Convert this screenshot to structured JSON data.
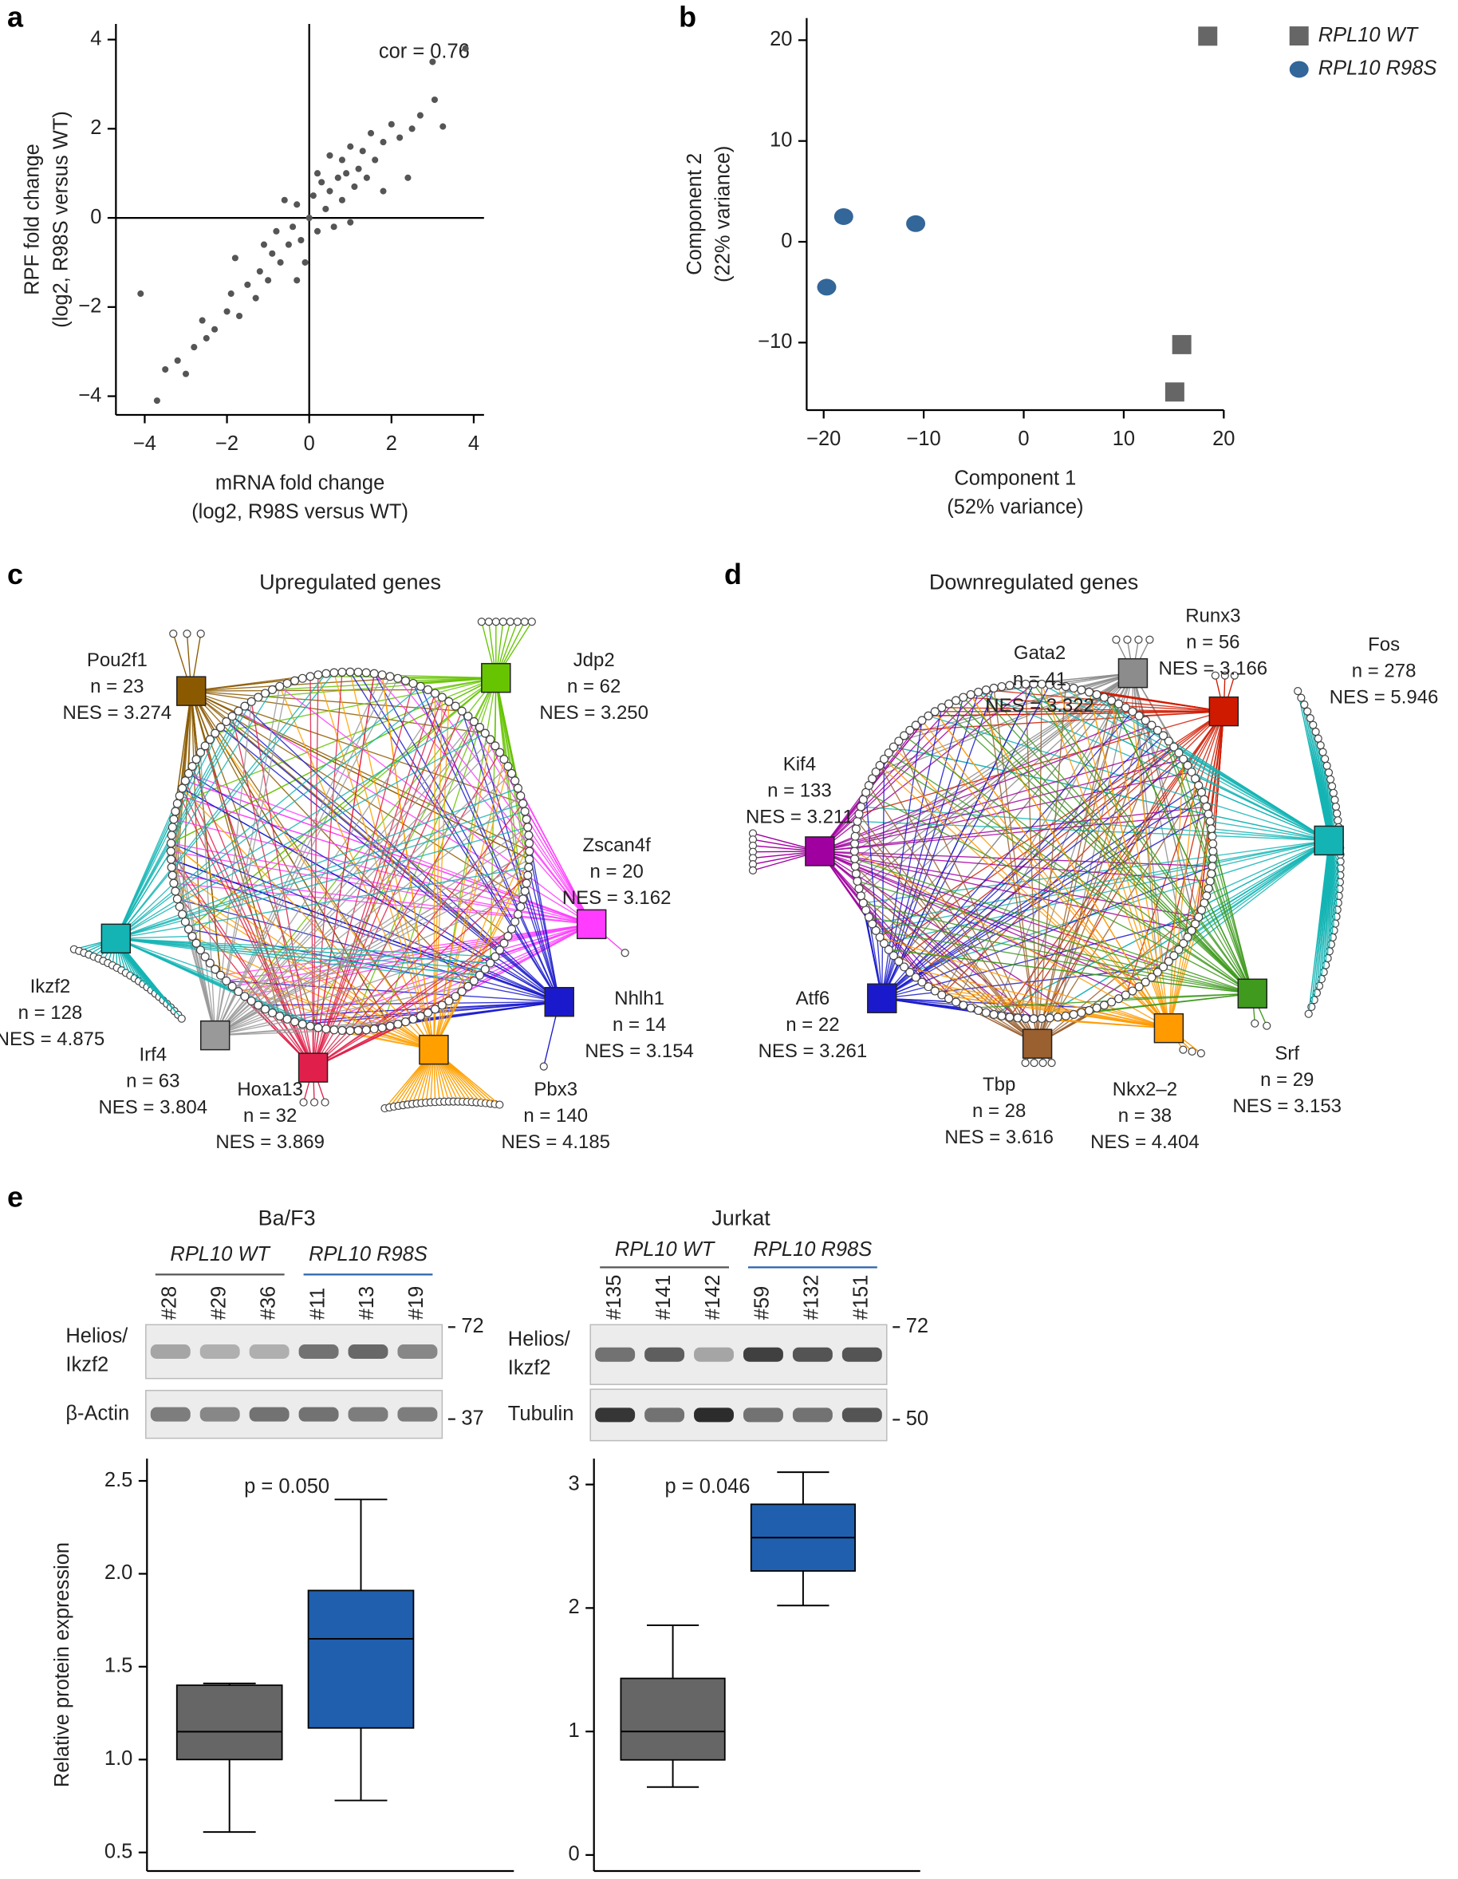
{
  "panels": [
    "a",
    "b",
    "c",
    "d",
    "e"
  ],
  "chart_data": [
    {
      "type": "scatter",
      "x_label": [
        "mRNA fold change",
        "(log2, R98S versus WT)"
      ],
      "y_label": [
        "RPF fold change",
        "(log2, R98S versus WT)"
      ],
      "annotation": "cor = 0.76",
      "color": "#555555",
      "x": [
        3.8,
        3.0,
        3.05,
        3.25,
        2.7,
        2.5,
        2.2,
        2.0,
        1.8,
        1.5,
        1.3,
        1.0,
        0.8,
        -4.1,
        -3.7,
        -3.5,
        -3.2,
        -3.0,
        -2.8,
        -2.5,
        -2.6,
        -2.3,
        -2.0,
        -1.9,
        -1.7,
        -1.5,
        -1.3,
        -1.2,
        -1.0,
        -0.9,
        -0.7,
        -0.5,
        -0.4,
        -0.3,
        -0.2,
        0,
        0.1,
        0.2,
        0.3,
        0.4,
        0.5,
        0.6,
        0.7,
        0.8,
        0.9,
        1.1,
        1.2,
        1.4,
        1.6,
        -0.6,
        -0.8,
        -1.1,
        0.2,
        -0.1,
        1.0,
        2.4,
        1.8,
        -1.8,
        0.5,
        -0.3
      ],
      "y": [
        3.8,
        3.5,
        2.65,
        2.05,
        2.3,
        2.0,
        1.8,
        2.1,
        1.7,
        1.9,
        1.5,
        1.6,
        1.3,
        -1.7,
        -4.1,
        -3.4,
        -3.2,
        -3.5,
        -2.9,
        -2.7,
        -2.3,
        -2.5,
        -2.1,
        -1.7,
        -2.2,
        -1.5,
        -1.8,
        -1.2,
        -1.4,
        -0.8,
        -1.0,
        -0.6,
        -0.2,
        0.3,
        -0.5,
        0,
        0.5,
        -0.3,
        0.8,
        0.2,
        0.6,
        -0.2,
        0.9,
        0.4,
        1.0,
        0.7,
        1.1,
        0.9,
        1.3,
        0.4,
        -0.3,
        -0.6,
        1.0,
        -1.0,
        -0.1,
        0.9,
        0.6,
        -0.9,
        1.4,
        -1.4
      ],
      "xlim": [
        -4.7,
        4.25
      ],
      "ylim": [
        -4.42,
        4.35
      ],
      "xticks": [
        {
          "value": -4,
          "label": "−4"
        },
        {
          "value": -2,
          "label": "−2"
        },
        0,
        2,
        4
      ],
      "yticks": [
        {
          "value": -4,
          "label": "−4"
        },
        {
          "value": -2,
          "label": "−2"
        },
        0,
        2,
        4
      ]
    },
    {
      "type": "scatter",
      "x_label": [
        "Component 1",
        "(52% variance)"
      ],
      "y_label": [
        "Component 2",
        "(22% variance)"
      ],
      "xlim": [
        -21.7,
        20
      ],
      "ylim": [
        -16.7,
        22.2
      ],
      "xticks": [
        {
          "value": -20,
          "label": "−20"
        },
        {
          "value": -10,
          "label": "−10"
        },
        0,
        10,
        20
      ],
      "yticks": [
        {
          "value": -10,
          "label": "−10"
        },
        0,
        10,
        20
      ],
      "legend": "upper right",
      "series": [
        {
          "name": "RPL10 WT",
          "color": "#666666",
          "marker": "square",
          "x": [
            18.4,
            15.8,
            15.1
          ],
          "y": [
            20.4,
            -10.2,
            -14.9
          ]
        },
        {
          "name": "RPL10 R98S",
          "color": "#336699",
          "marker": "circle",
          "x": [
            -19.7,
            -18,
            -10.8
          ],
          "y": [
            -4.5,
            2.5,
            1.8
          ]
        }
      ]
    },
    {
      "type": "box",
      "y_label": "Relative protein expression",
      "annotation": "p = 0.050",
      "ylim": [
        0.4,
        2.62
      ],
      "yticks": [
        0.5,
        {
          "value": 1,
          "label": "1.0"
        },
        1.5,
        {
          "value": 2,
          "label": "2.0"
        },
        2.5
      ],
      "boxes": [
        {
          "color": "#666666",
          "min": 0.61,
          "q1": 1.0,
          "median": 1.15,
          "q3": 1.4,
          "max": 1.41
        },
        {
          "color": "#1f5fad",
          "min": 0.78,
          "q1": 1.17,
          "median": 1.65,
          "q3": 1.91,
          "max": 2.4
        }
      ]
    },
    {
      "type": "box",
      "annotation": "p = 0.046",
      "ylim": [
        -0.13,
        3.21
      ],
      "yticks": [
        0,
        1,
        2,
        3
      ],
      "boxes": [
        {
          "color": "#666666",
          "min": 0.55,
          "q1": 0.77,
          "median": 1.0,
          "q3": 1.43,
          "max": 1.86
        },
        {
          "color": "#1f5fad",
          "min": 2.02,
          "q1": 2.3,
          "median": 2.57,
          "q3": 2.84,
          "max": 3.1
        }
      ]
    }
  ],
  "networks": [
    {
      "title": "Upregulated genes",
      "nodes": [
        {
          "name": "Pou2f1",
          "n": "n = 23",
          "nes": "NES = 3.274",
          "color": "#8b5a00"
        },
        {
          "name": "Jdp2",
          "n": "n = 62",
          "nes": "NES = 3.250",
          "color": "#66c400"
        },
        {
          "name": "Zscan4f",
          "n": "n = 20",
          "nes": "NES = 3.162",
          "color": "#ff3cff"
        },
        {
          "name": "Nhlh1",
          "n": "n = 14",
          "nes": "NES = 3.154",
          "color": "#1a1acc"
        },
        {
          "name": "Pbx3",
          "n": "n = 140",
          "nes": "NES = 4.185",
          "color": "#ffa000"
        },
        {
          "name": "Hoxa13",
          "n": "n = 32",
          "nes": "NES = 3.869",
          "color": "#e0204a"
        },
        {
          "name": "Irf4",
          "n": "n = 63",
          "nes": "NES = 3.804",
          "color": "#999999"
        },
        {
          "name": "Ikzf2",
          "n": "n = 128",
          "nes": "NES = 4.875",
          "color": "#14b4b4"
        }
      ]
    },
    {
      "title": "Downregulated genes",
      "nodes": [
        {
          "name": "Gata2",
          "n": "n = 41",
          "nes": "NES = 3.322",
          "color": "#8c8c8c"
        },
        {
          "name": "Runx3",
          "n": "n = 56",
          "nes": "NES = 3.166",
          "color": "#d01a00"
        },
        {
          "name": "Fos",
          "n": "n = 278",
          "nes": "NES = 5.946",
          "color": "#14b4b4"
        },
        {
          "name": "Kif4",
          "n": "n = 133",
          "nes": "NES = 3.211",
          "color": "#a000a0"
        },
        {
          "name": "Atf6",
          "n": "n = 22",
          "nes": "NES = 3.261",
          "color": "#1a1acc"
        },
        {
          "name": "Tbp",
          "n": "n = 28",
          "nes": "NES = 3.616",
          "color": "#9a6030"
        },
        {
          "name": "Nkx2–2",
          "n": "n = 38",
          "nes": "NES = 4.404",
          "color": "#ff9a00"
        },
        {
          "name": "Srf",
          "n": "n = 29",
          "nes": "NES = 3.153",
          "color": "#3f9a1e"
        }
      ]
    }
  ],
  "blots": [
    {
      "title": "Ba/F3",
      "groups": [
        {
          "name": "RPL10 WT",
          "color": "#555555",
          "lanes": [
            "#28",
            "#29",
            "#36"
          ]
        },
        {
          "name": "RPL10 R98S",
          "color": "#2a62ad",
          "lanes": [
            "#11",
            "#13",
            "#19"
          ]
        }
      ],
      "rows": [
        {
          "label": [
            "Helios/",
            "Ikzf2"
          ],
          "marker": 72
        },
        {
          "label": [
            "β-Actin"
          ],
          "marker": 37
        }
      ]
    },
    {
      "title": "Jurkat",
      "groups": [
        {
          "name": "RPL10 WT",
          "color": "#555555",
          "lanes": [
            "#135",
            "#141",
            "#142"
          ]
        },
        {
          "name": "RPL10 R98S",
          "color": "#2a62ad",
          "lanes": [
            "#59",
            "#132",
            "#151"
          ]
        }
      ],
      "rows": [
        {
          "label": [
            "Helios/",
            "Ikzf2"
          ],
          "marker": 72
        },
        {
          "label": [
            "Tubulin"
          ],
          "marker": 50
        }
      ]
    }
  ]
}
